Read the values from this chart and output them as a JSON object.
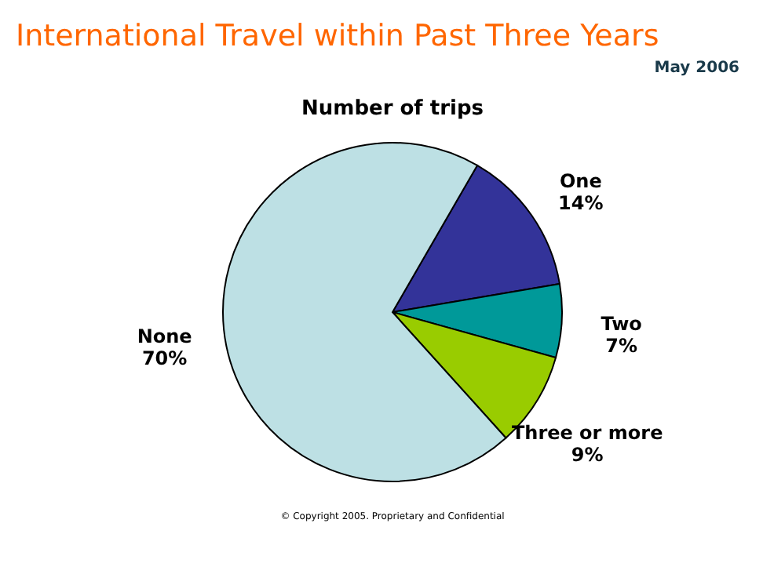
{
  "chart_data": {
    "type": "pie",
    "title": "International Travel within Past Three Years",
    "subtitle": "Number of trips",
    "categories": [
      "One",
      "Two",
      "Three or more",
      "None"
    ],
    "values": [
      14,
      7,
      9,
      70
    ],
    "value_labels": [
      "14%",
      "7%",
      "9%",
      "70%"
    ],
    "colors": [
      "#333399",
      "#009999",
      "#99cc00",
      "#bde0e4"
    ],
    "legend": false,
    "annotations": [
      "May 2006",
      "© Copyright 2005. Proprietary and Confidential"
    ]
  }
}
